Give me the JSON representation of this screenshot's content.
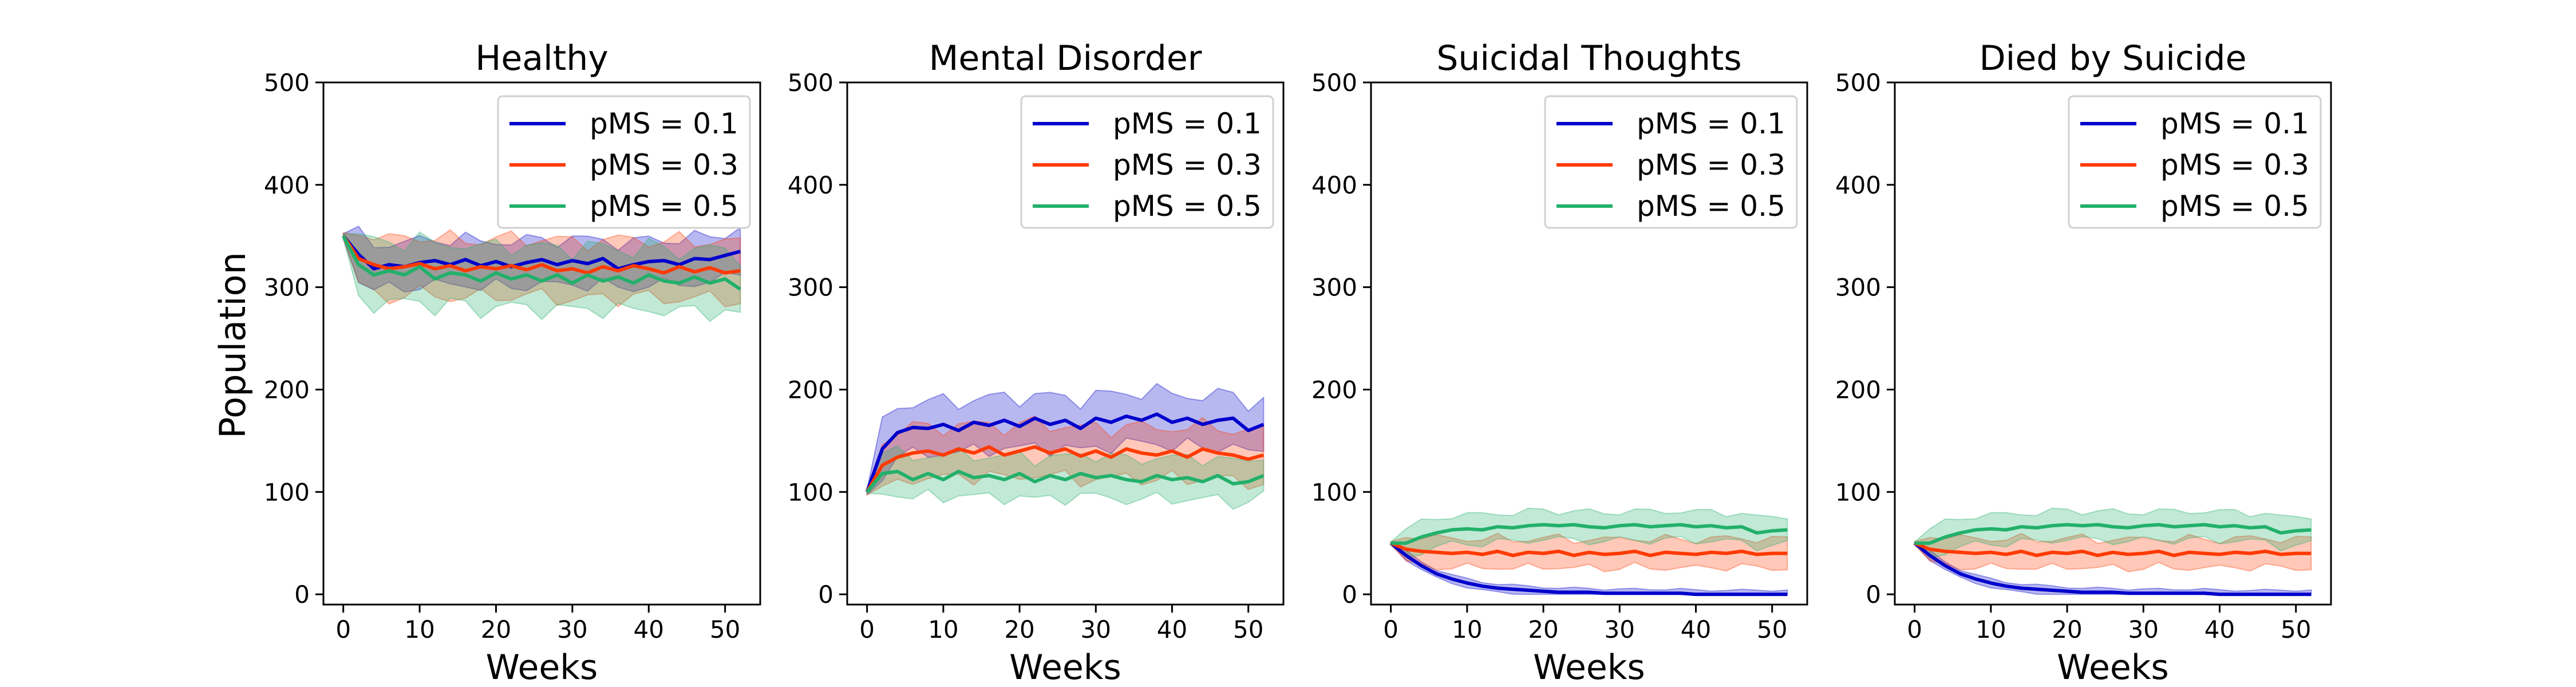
{
  "figure": {
    "ylabel": "Population"
  },
  "colors": {
    "pMS = 0.1": "#0000cc",
    "pMS = 0.3": "#ff3a00",
    "pMS = 0.5": "#22b06a"
  },
  "chart_data": [
    {
      "type": "line",
      "title": "Healthy",
      "xlabel": "Weeks",
      "xlim": [
        -2.6,
        54.6
      ],
      "ylim": [
        -10,
        500
      ],
      "xticks": [
        0,
        10,
        20,
        30,
        40,
        50
      ],
      "yticks": [
        0,
        100,
        200,
        300,
        400,
        500
      ],
      "legend_position": "top-right",
      "x": [
        0,
        2,
        4,
        6,
        8,
        10,
        12,
        14,
        16,
        18,
        20,
        22,
        24,
        26,
        28,
        30,
        32,
        34,
        36,
        38,
        40,
        42,
        44,
        46,
        48,
        50,
        52
      ],
      "series": [
        {
          "name": "pMS = 0.1",
          "values": [
            350,
            332,
            318,
            322,
            320,
            324,
            326,
            322,
            327,
            321,
            325,
            320,
            324,
            327,
            322,
            326,
            323,
            328,
            318,
            322,
            325,
            326,
            322,
            328,
            327,
            331,
            335
          ],
          "band": 22
        },
        {
          "name": "pMS = 0.3",
          "values": [
            350,
            328,
            322,
            318,
            320,
            323,
            318,
            321,
            316,
            320,
            318,
            321,
            317,
            322,
            316,
            318,
            314,
            320,
            316,
            321,
            318,
            314,
            320,
            315,
            319,
            314,
            316
          ],
          "band": 28
        },
        {
          "name": "pMS = 0.5",
          "values": [
            350,
            322,
            312,
            316,
            312,
            320,
            308,
            314,
            312,
            306,
            314,
            308,
            312,
            306,
            312,
            304,
            312,
            306,
            310,
            304,
            312,
            306,
            304,
            310,
            304,
            308,
            298
          ],
          "band": 30
        }
      ]
    },
    {
      "type": "line",
      "title": "Mental Disorder",
      "xlabel": "Weeks",
      "xlim": [
        -2.6,
        54.6
      ],
      "ylim": [
        -10,
        500
      ],
      "xticks": [
        0,
        10,
        20,
        30,
        40,
        50
      ],
      "yticks": [
        0,
        100,
        200,
        300,
        400,
        500
      ],
      "legend_position": "top-right",
      "x": [
        0,
        2,
        4,
        6,
        8,
        10,
        12,
        14,
        16,
        18,
        20,
        22,
        24,
        26,
        28,
        30,
        32,
        34,
        36,
        38,
        40,
        42,
        44,
        46,
        48,
        50,
        52
      ],
      "series": [
        {
          "name": "pMS = 0.1",
          "values": [
            100,
            142,
            158,
            163,
            162,
            166,
            160,
            168,
            165,
            170,
            164,
            172,
            166,
            170,
            162,
            172,
            168,
            174,
            170,
            176,
            168,
            172,
            166,
            170,
            172,
            160,
            166
          ],
          "band": 25
        },
        {
          "name": "pMS = 0.3",
          "values": [
            100,
            126,
            134,
            138,
            140,
            136,
            142,
            138,
            144,
            136,
            140,
            144,
            138,
            142,
            135,
            140,
            134,
            142,
            138,
            136,
            140,
            134,
            142,
            138,
            136,
            132,
            136
          ],
          "band": 25
        },
        {
          "name": "pMS = 0.5",
          "values": [
            100,
            118,
            120,
            112,
            118,
            112,
            120,
            114,
            116,
            112,
            118,
            110,
            116,
            112,
            118,
            114,
            116,
            112,
            110,
            116,
            112,
            114,
            110,
            116,
            108,
            110,
            116
          ],
          "band": 20
        }
      ]
    },
    {
      "type": "line",
      "title": "Suicidal Thoughts",
      "xlabel": "Weeks",
      "xlim": [
        -2.6,
        54.6
      ],
      "ylim": [
        -10,
        500
      ],
      "xticks": [
        0,
        10,
        20,
        30,
        40,
        50
      ],
      "yticks": [
        0,
        100,
        200,
        300,
        400,
        500
      ],
      "legend_position": "top-right",
      "x": [
        0,
        2,
        4,
        6,
        8,
        10,
        12,
        14,
        16,
        18,
        20,
        22,
        24,
        26,
        28,
        30,
        32,
        34,
        36,
        38,
        40,
        42,
        44,
        46,
        48,
        50,
        52
      ],
      "series": [
        {
          "name": "pMS = 0.1",
          "values": [
            50,
            38,
            28,
            20,
            15,
            11,
            8,
            6,
            5,
            4,
            3,
            2,
            2,
            2,
            1,
            1,
            1,
            1,
            1,
            1,
            0,
            0,
            0,
            0,
            0,
            0,
            0
          ],
          "band": 4
        },
        {
          "name": "pMS = 0.3",
          "values": [
            50,
            44,
            42,
            41,
            40,
            41,
            39,
            42,
            38,
            41,
            40,
            42,
            38,
            41,
            39,
            40,
            42,
            38,
            41,
            40,
            39,
            41,
            40,
            42,
            39,
            40,
            40
          ],
          "band": 14
        },
        {
          "name": "pMS = 0.5",
          "values": [
            50,
            50,
            56,
            60,
            63,
            64,
            63,
            66,
            65,
            67,
            68,
            67,
            68,
            66,
            65,
            67,
            68,
            66,
            67,
            68,
            66,
            67,
            65,
            66,
            60,
            62,
            63
          ],
          "band": 14
        }
      ]
    },
    {
      "type": "line",
      "title": "Died by Suicide",
      "xlabel": "Weeks",
      "xlim": [
        -2.6,
        54.6
      ],
      "ylim": [
        -10,
        500
      ],
      "xticks": [
        0,
        10,
        20,
        30,
        40,
        50
      ],
      "yticks": [
        0,
        100,
        200,
        300,
        400,
        500
      ],
      "legend_position": "top-right",
      "x": [
        0,
        2,
        4,
        6,
        8,
        10,
        12,
        14,
        16,
        18,
        20,
        22,
        24,
        26,
        28,
        30,
        32,
        34,
        36,
        38,
        40,
        42,
        44,
        46,
        48,
        50,
        52
      ],
      "series": [
        {
          "name": "pMS = 0.1",
          "values": [
            50,
            38,
            28,
            20,
            15,
            11,
            8,
            6,
            5,
            4,
            3,
            2,
            2,
            2,
            1,
            1,
            1,
            1,
            1,
            1,
            0,
            0,
            0,
            0,
            0,
            0,
            0
          ],
          "band": 4
        },
        {
          "name": "pMS = 0.3",
          "values": [
            50,
            44,
            42,
            41,
            40,
            41,
            39,
            42,
            38,
            41,
            40,
            42,
            38,
            41,
            39,
            40,
            42,
            38,
            41,
            40,
            39,
            41,
            40,
            42,
            39,
            40,
            40
          ],
          "band": 14
        },
        {
          "name": "pMS = 0.5",
          "values": [
            50,
            50,
            56,
            60,
            63,
            64,
            63,
            66,
            65,
            67,
            68,
            67,
            68,
            66,
            65,
            67,
            68,
            66,
            67,
            68,
            66,
            67,
            65,
            66,
            60,
            62,
            63
          ],
          "band": 14
        }
      ]
    }
  ]
}
